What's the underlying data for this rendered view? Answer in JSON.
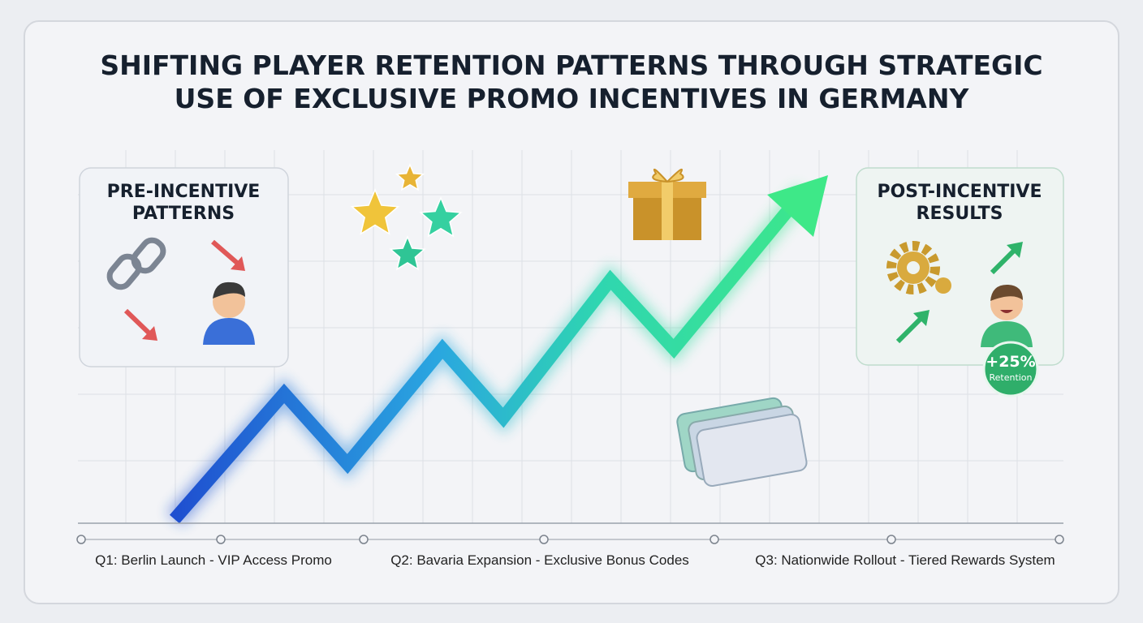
{
  "title": {
    "lines": [
      "SHIFTING PLAYER RETENTION PATTERNS THROUGH STRATEGIC",
      "USE OF EXCLUSIVE PROMO INCENTIVES IN GERMANY"
    ]
  },
  "pre_panel": {
    "title_lines": [
      "PRE-INCENTIVE",
      "PATTERNS"
    ]
  },
  "post_panel": {
    "title_lines": [
      "POST-INCENTIVE",
      "RESULTS"
    ],
    "badge": {
      "value": "+25%",
      "label": "Retention"
    }
  },
  "timeline": {
    "labels": [
      "Q1: Berlin Launch - VIP Access Promo",
      "Q2: Bavaria Expansion - Exclusive Bonus Codes",
      "Q3: Nationwide Rollout - Tiered Rewards System"
    ]
  }
}
